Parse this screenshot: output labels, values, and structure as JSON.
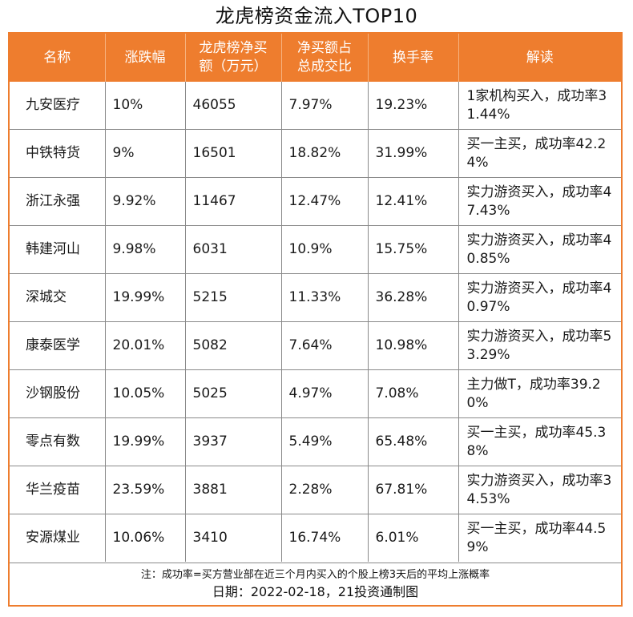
{
  "title": "龙虎榜资金流入TOP10",
  "headers": [
    "名称",
    "涨跌幅",
    "龙虎榜净买额（万元）",
    "净买额占总成交比",
    "换手率",
    "解读"
  ],
  "rows": [
    [
      "九安医疗",
      "10%",
      "46055",
      "7.97%",
      "19.23%",
      "1家机构买入，成功率31.44%"
    ],
    [
      "中铁特货",
      "9%",
      "16501",
      "18.82%",
      "31.99%",
      "买一主买，成功率42.24%"
    ],
    [
      "浙江永强",
      "9.92%",
      "11467",
      "12.47%",
      "12.41%",
      "实力游资买入，成功率47.43%"
    ],
    [
      "韩建河山",
      "9.98%",
      "6031",
      "10.9%",
      "15.75%",
      "实力游资买入，成功率40.85%"
    ],
    [
      "深城交",
      "19.99%",
      "5215",
      "11.33%",
      "36.28%",
      "实力游资买入，成功率40.97%"
    ],
    [
      "康泰医学",
      "20.01%",
      "5082",
      "7.64%",
      "10.98%",
      "实力游资买入，成功率53.29%"
    ],
    [
      "沙钢股份",
      "10.05%",
      "5025",
      "4.97%",
      "7.08%",
      "主力做T，成功率39.20%"
    ],
    [
      "零点有数",
      "19.99%",
      "3937",
      "5.49%",
      "65.48%",
      "买一主买，成功率45.38%"
    ],
    [
      "华兰疫苗",
      "23.59%",
      "3881",
      "2.28%",
      "67.81%",
      "实力游资买入，成功率34.53%"
    ],
    [
      "安源煤业",
      "10.06%",
      "3410",
      "16.74%",
      "6.01%",
      "买一主买，成功率44.59%"
    ]
  ],
  "footnote": "注：成功率=买方营业部在近三个月内买入的个股上榜3天后的平均上涨概率",
  "date_line": "日期：2022-02-18，21投资通制图",
  "colors": {
    "header_bg": "#ee7d2e",
    "header_text": "#ffffff",
    "border": "#8a8a8a"
  }
}
